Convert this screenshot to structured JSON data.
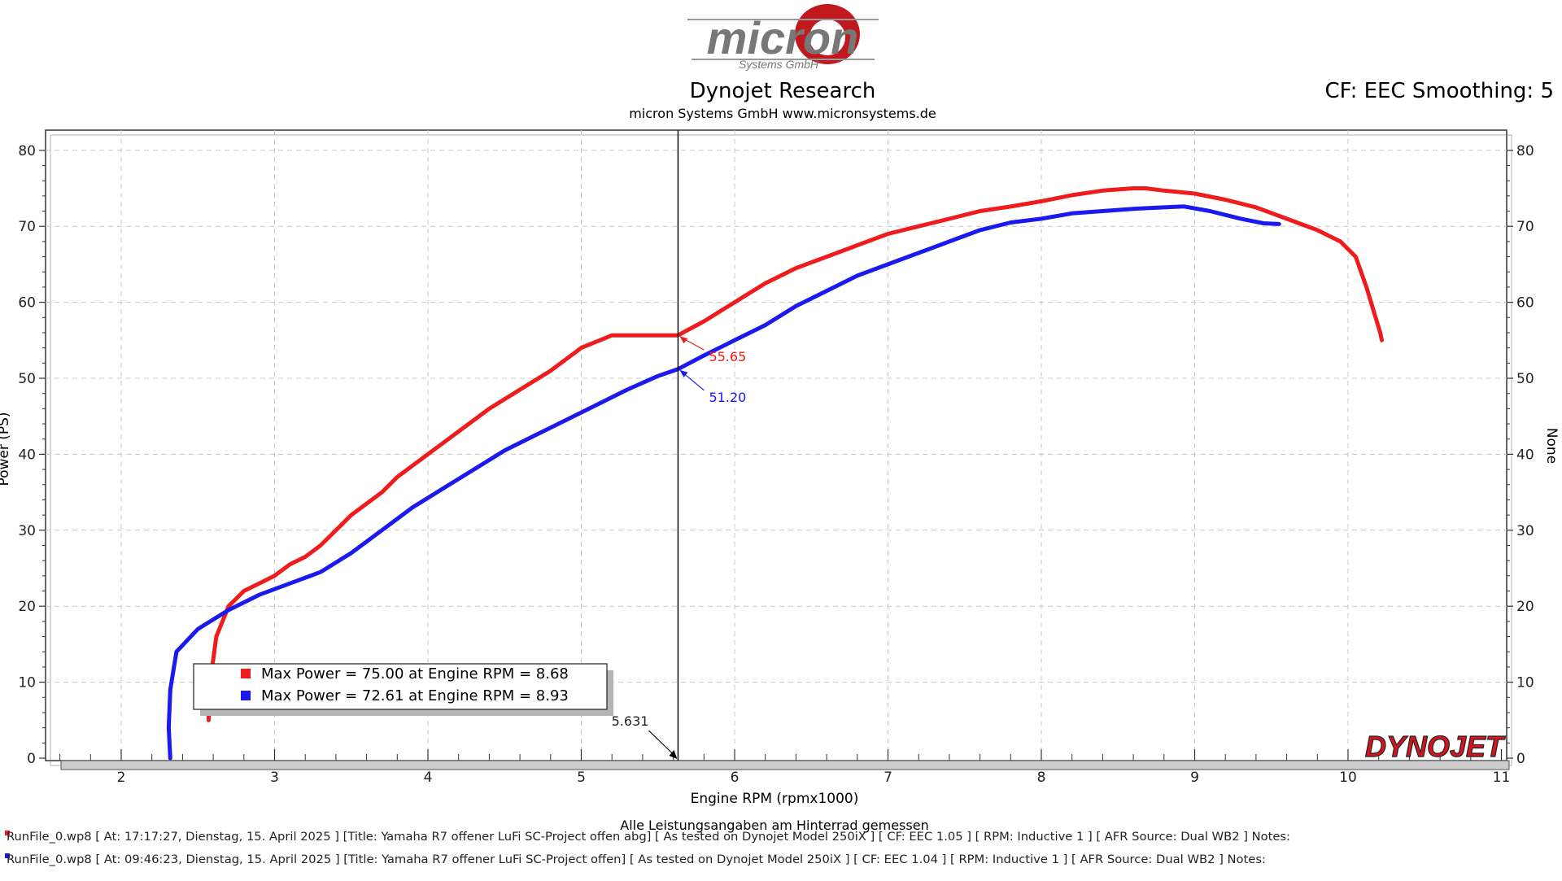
{
  "header": {
    "logo_text": "micron",
    "logo_sub": "Systems GmbH",
    "title": "Dynojet Research",
    "subtitle": "micron Systems GmbH  www.micronsystems.de",
    "cf_label": "CF: EEC Smoothing: 5"
  },
  "colors": {
    "run1": "#ee1c1c",
    "run2": "#1a1aee",
    "dyno_red": "#d4141e"
  },
  "chart_data": {
    "type": "line",
    "xlabel": "Engine RPM (rpmx1000)",
    "ylabel": "Power (PS)",
    "y2label": "None",
    "xlim": [
      1.6,
      11
    ],
    "ylim": [
      0,
      80
    ],
    "x_ticks": [
      2,
      3,
      4,
      5,
      6,
      7,
      8,
      9,
      10,
      11
    ],
    "y_ticks": [
      0,
      10,
      20,
      30,
      40,
      50,
      60,
      70,
      80
    ],
    "grid": true,
    "series": [
      {
        "x": [
          2.57,
          2.58,
          2.62,
          2.7,
          2.8,
          2.9,
          3.0,
          3.1,
          3.2,
          3.3,
          3.4,
          3.5,
          3.6,
          3.7,
          3.8,
          3.9,
          4.0,
          4.2,
          4.4,
          4.6,
          4.8,
          5.0,
          5.2,
          5.4,
          5.63,
          5.8,
          6.0,
          6.2,
          6.4,
          6.6,
          6.8,
          7.0,
          7.2,
          7.4,
          7.6,
          7.8,
          8.0,
          8.2,
          8.4,
          8.6,
          8.68,
          8.8,
          9.0,
          9.2,
          9.4,
          9.6,
          9.8,
          9.95,
          10.05,
          10.12,
          10.18,
          10.21,
          10.22
        ],
        "y": [
          5,
          10,
          16,
          20,
          22,
          23,
          24,
          25.5,
          26.5,
          28,
          30,
          32,
          33.5,
          35,
          37,
          38.5,
          40,
          43,
          46,
          48.5,
          51,
          54,
          55.65,
          55.65,
          55.65,
          57.5,
          60,
          62.5,
          64.5,
          66,
          67.5,
          69,
          70,
          71,
          72,
          72.6,
          73.3,
          74.1,
          74.7,
          75.0,
          75.0,
          74.7,
          74.3,
          73.5,
          72.5,
          71,
          69.5,
          68,
          66,
          62,
          58,
          56,
          55
        ],
        "color": "#ee1c1c"
      },
      {
        "x": [
          2.32,
          2.31,
          2.32,
          2.36,
          2.5,
          2.7,
          2.9,
          3.1,
          3.3,
          3.5,
          3.7,
          3.9,
          4.1,
          4.3,
          4.5,
          4.7,
          4.9,
          5.1,
          5.3,
          5.5,
          5.63,
          5.8,
          6.0,
          6.2,
          6.4,
          6.6,
          6.8,
          7.0,
          7.2,
          7.4,
          7.6,
          7.8,
          8.0,
          8.2,
          8.4,
          8.6,
          8.8,
          8.93,
          9.1,
          9.3,
          9.45,
          9.55
        ],
        "y": [
          0,
          4,
          9,
          14,
          17,
          19.5,
          21.5,
          23,
          24.5,
          27,
          30,
          33,
          35.5,
          38,
          40.5,
          42.5,
          44.5,
          46.5,
          48.5,
          50.3,
          51.2,
          53,
          55,
          57,
          59.5,
          61.5,
          63.5,
          65,
          66.5,
          68,
          69.5,
          70.5,
          71,
          71.7,
          72,
          72.3,
          72.5,
          72.61,
          72,
          71,
          70.4,
          70.3
        ],
        "color": "#1a1aee"
      }
    ],
    "legend": [
      {
        "label": "Max Power = 75.00 at Engine RPM = 8.68",
        "color": "#ee1c1c"
      },
      {
        "label": "Max Power = 72.61 at Engine RPM = 8.93",
        "color": "#1a1aee"
      }
    ],
    "cursor": {
      "x": 5.631,
      "label": "5.631",
      "values": [
        {
          "label": "55.65",
          "y": 55.65,
          "color": "#ee1c1c"
        },
        {
          "label": "51.20",
          "y": 51.2,
          "color": "#1a1aee"
        }
      ]
    },
    "brand": "DYNOJET"
  },
  "footer": {
    "note": "Alle Leistungsangaben am Hinterrad gemessen",
    "run1": "RunFile_0.wp8 [ At: 17:17:27, Dienstag, 15. April 2025 ] [Title: Yamaha R7 offener LuFi SC-Project offen abg]  [ As tested on Dynojet Model 250iX ] [ CF: EEC 1.05 ] [ RPM: Inductive 1 ] [ AFR Source: Dual WB2 ] Notes:",
    "run2": "RunFile_0.wp8 [ At: 09:46:23, Dienstag, 15. April 2025 ] [Title: Yamaha R7 offener LuFi SC-Project offen]  [ As tested on Dynojet Model 250iX ] [ CF: EEC 1.04 ] [ RPM: Inductive 1 ] [ AFR Source: Dual WB2 ] Notes:"
  }
}
